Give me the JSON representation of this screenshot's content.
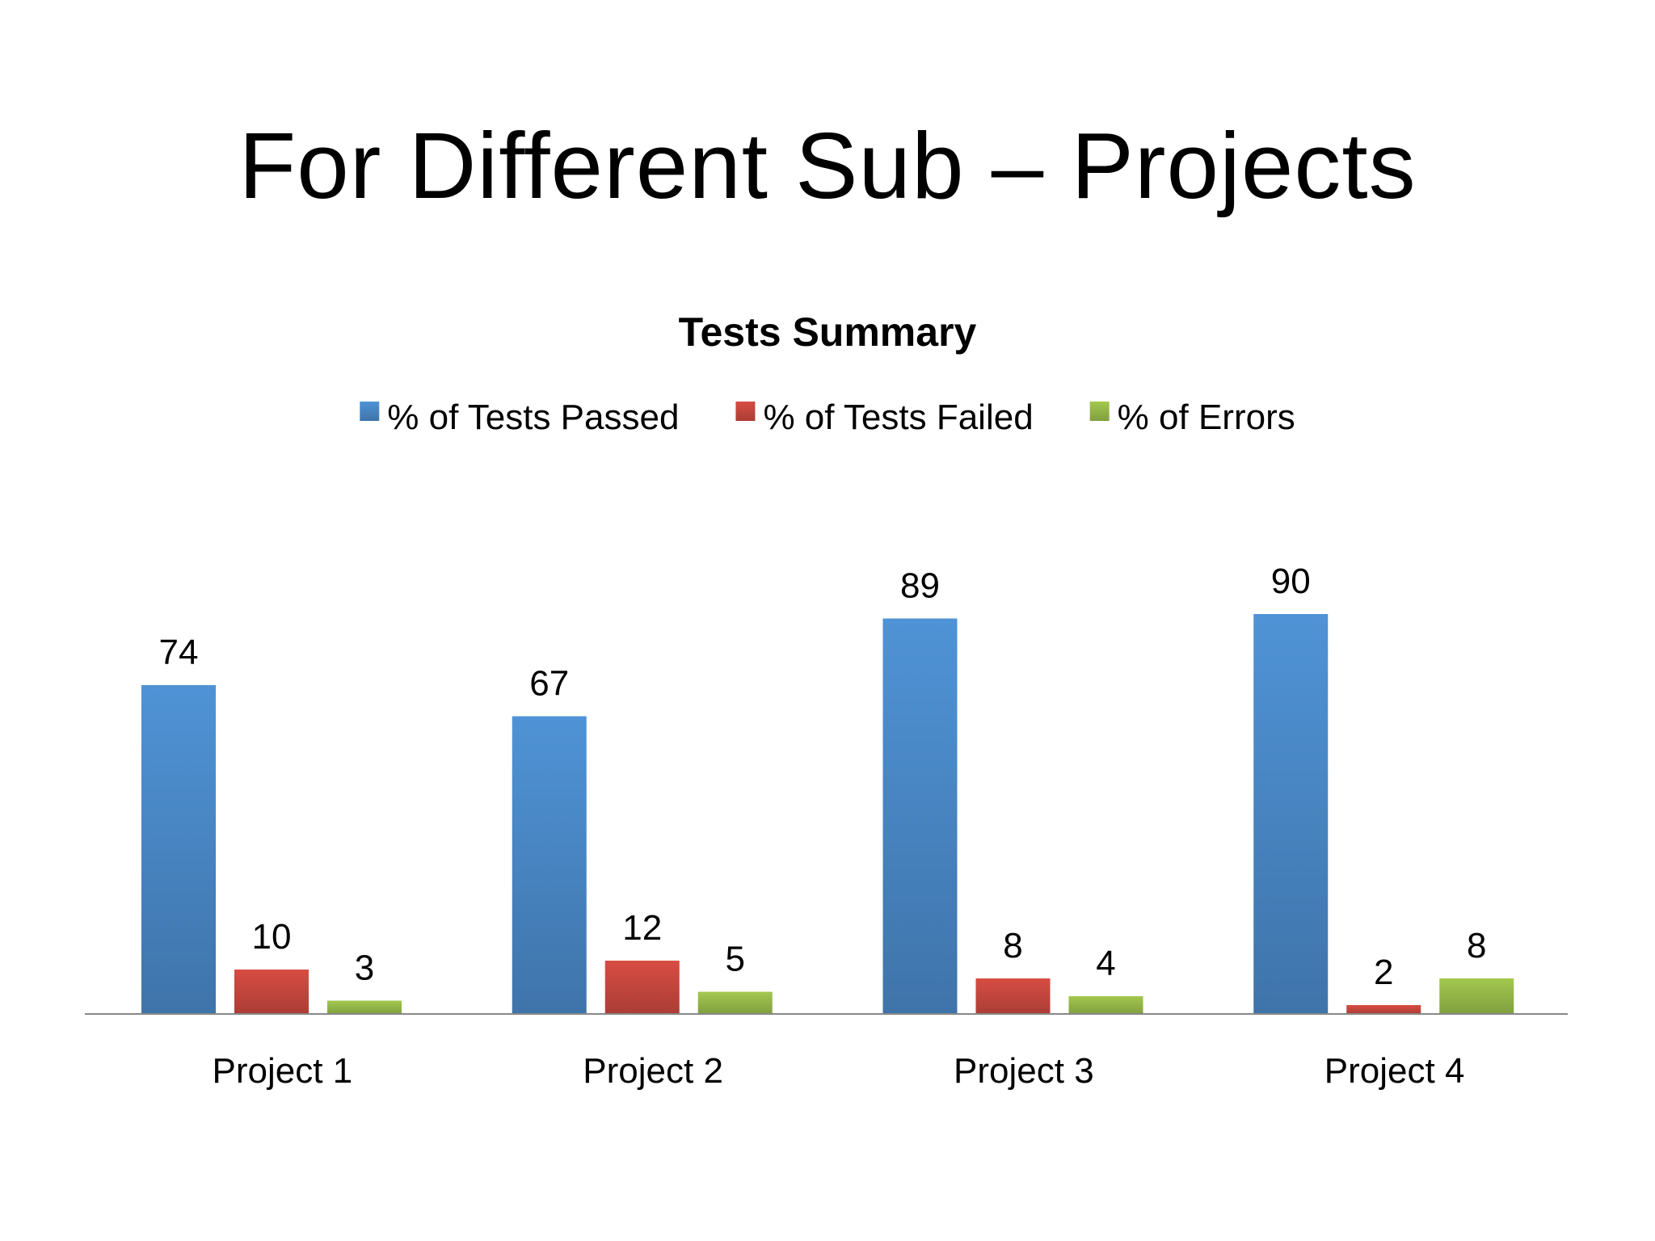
{
  "slide": {
    "title": "For Different Sub – Projects"
  },
  "chart_data": {
    "type": "bar",
    "title": "Tests Summary",
    "xlabel": "",
    "ylabel": "",
    "categories": [
      "Project 1",
      "Project 2",
      "Project 3",
      "Project 4"
    ],
    "series": [
      {
        "name": "% of Tests Passed",
        "values": [
          74,
          67,
          89,
          90
        ],
        "color": "#4a89c8"
      },
      {
        "name": "% of Tests Failed",
        "values": [
          10,
          12,
          8,
          2
        ],
        "color": "#c9483f"
      },
      {
        "name": "% of Errors",
        "values": [
          3,
          5,
          4,
          8
        ],
        "color": "#98bb4a"
      }
    ],
    "ylim": [
      0,
      100
    ],
    "grid": false,
    "legend": "top",
    "data_labels": true,
    "y_axis_visible": false
  }
}
